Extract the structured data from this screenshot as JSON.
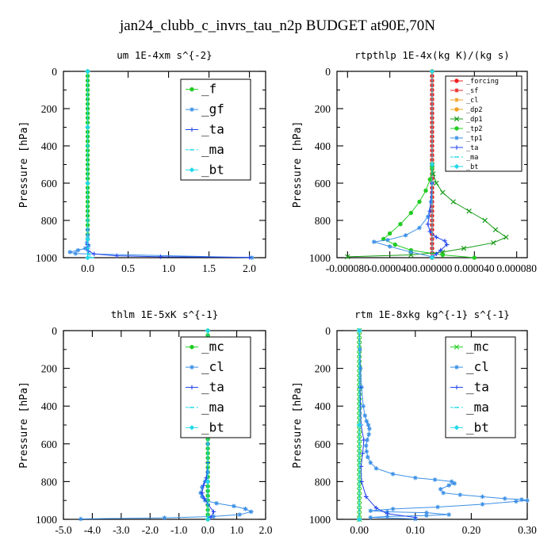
{
  "figure": {
    "title": "jan24_clubb_c_invrs_tau_n2p  BUDGET at90E,70N"
  },
  "colors": {
    "green": "#22cc22",
    "dkgreen": "#119911",
    "blue": "#2244ee",
    "lblue": "#3a8fe6",
    "cyan": "#22d8e8",
    "red": "#ee2222",
    "orange": "#f2a020",
    "axis": "#000000"
  },
  "chart_data": [
    {
      "id": "um",
      "type": "line",
      "title": "um  1E-4xm s^{-2}",
      "ylabel": "Pressure [hPa]",
      "xlim": [
        -0.3,
        2.2
      ],
      "ylim": [
        1000,
        0
      ],
      "xticks": [
        0.0,
        0.5,
        1.0,
        1.5,
        2.0
      ],
      "xtick_labels": [
        "0.0",
        "0.5",
        "1.0",
        "1.5",
        "2.0"
      ],
      "yticks": [
        0,
        200,
        400,
        600,
        800,
        1000
      ],
      "ytick_labels": [
        "0",
        "200",
        "400",
        "600",
        "800",
        "1000"
      ],
      "legend": {
        "position": "top-right",
        "size": "big"
      },
      "series": [
        {
          "name": "_f",
          "color": "green",
          "marker": "dot",
          "x": [
            0,
            0,
            0,
            0,
            0,
            0,
            0,
            0,
            0,
            0,
            0,
            0,
            0,
            0,
            0,
            0,
            0,
            0,
            0,
            0,
            0,
            0,
            0,
            0,
            0,
            0,
            0,
            0,
            0,
            0,
            0,
            0,
            0,
            0,
            0,
            0,
            0
          ],
          "y": [
            0,
            25,
            50,
            75,
            100,
            125,
            150,
            175,
            200,
            225,
            250,
            275,
            300,
            325,
            350,
            375,
            400,
            425,
            450,
            475,
            500,
            525,
            550,
            575,
            600,
            625,
            650,
            675,
            700,
            725,
            750,
            775,
            800,
            825,
            850,
            875,
            900
          ]
        },
        {
          "name": "_gf",
          "color": "lblue",
          "marker": "star",
          "x": [
            0,
            0,
            0,
            -0.01,
            0.01,
            -0.03,
            -0.12,
            -0.22,
            -0.15,
            2.03
          ],
          "y": [
            850,
            880,
            900,
            920,
            935,
            950,
            960,
            970,
            978,
            1000
          ]
        },
        {
          "name": "_ta",
          "color": "blue",
          "marker": "plus",
          "x": [
            0,
            0,
            -0.01,
            0.01,
            0.08,
            0.36,
            0.9,
            2.0
          ],
          "y": [
            900,
            930,
            950,
            965,
            980,
            990,
            995,
            998
          ]
        },
        {
          "name": "_ma",
          "color": "cyan",
          "marker": "dash",
          "x": [
            0,
            0,
            0,
            0,
            0.01,
            0.05
          ],
          "y": [
            0,
            400,
            800,
            950,
            980,
            1000
          ]
        },
        {
          "name": "_bt",
          "color": "cyan",
          "marker": "diamond",
          "x": [
            0,
            0,
            0,
            0,
            0
          ],
          "y": [
            0,
            300,
            600,
            900,
            1000
          ]
        }
      ]
    },
    {
      "id": "rtpthlp",
      "type": "line",
      "title": "rtpthlp  1E-4x(kg K)/(kg s)",
      "ylabel": "Pressure [hPa]",
      "xlim": [
        -9e-05,
        9e-05
      ],
      "ylim": [
        1000,
        0
      ],
      "xticks": [
        -8e-05,
        -4e-05,
        0,
        4e-05,
        8e-05
      ],
      "xtick_labels": [
        "-0.000080",
        "-0.000040",
        "0.000000",
        "0.000040",
        "0.000080"
      ],
      "yticks": [
        0,
        200,
        400,
        600,
        800,
        1000
      ],
      "ytick_labels": [
        "0",
        "200",
        "400",
        "600",
        "800",
        "1000"
      ],
      "legend": {
        "position": "top-right",
        "size": "small"
      },
      "series": [
        {
          "name": "_forcing",
          "color": "red",
          "marker": "dot",
          "x": [
            0,
            0,
            0,
            0,
            0,
            0,
            0,
            0,
            0,
            0,
            0,
            0,
            0,
            0,
            0,
            0,
            0,
            0,
            0,
            0,
            0,
            0,
            0,
            0,
            0,
            0,
            0,
            0,
            0,
            0,
            0,
            0,
            0,
            0,
            0,
            0,
            0,
            0,
            0,
            0,
            0
          ],
          "y": [
            0,
            25,
            50,
            75,
            100,
            125,
            150,
            175,
            200,
            225,
            250,
            275,
            300,
            325,
            350,
            375,
            400,
            425,
            450,
            475,
            500,
            525,
            550,
            575,
            600,
            625,
            650,
            675,
            700,
            725,
            750,
            775,
            800,
            825,
            850,
            875,
            900,
            925,
            950,
            975,
            1000
          ]
        },
        {
          "name": "_sf",
          "color": "red",
          "marker": "star",
          "x": [
            0,
            0,
            0
          ],
          "y": [
            0,
            500,
            1000
          ]
        },
        {
          "name": "_cl",
          "color": "orange",
          "marker": "star",
          "x": [
            0,
            0,
            0
          ],
          "y": [
            0,
            500,
            1000
          ]
        },
        {
          "name": "_dp2",
          "color": "orange",
          "marker": "dot",
          "x": [
            0,
            0,
            0
          ],
          "y": [
            0,
            500,
            1000
          ]
        },
        {
          "name": "_dp1",
          "color": "dkgreen",
          "marker": "cross",
          "x": [
            0,
            1e-06,
            4e-06,
            1e-05,
            2e-05,
            3.5e-05,
            5e-05,
            6e-05,
            7e-05,
            5.8e-05,
            3e-05,
            1e-05,
            -2e-05,
            -8e-05
          ],
          "y": [
            500,
            550,
            600,
            650,
            700,
            750,
            800,
            850,
            890,
            920,
            950,
            970,
            985,
            995
          ]
        },
        {
          "name": "_tp2",
          "color": "green",
          "marker": "dot",
          "x": [
            0,
            -2e-06,
            -6e-06,
            -1.2e-05,
            -2e-05,
            -3e-05,
            -4e-05,
            -4.6e-05,
            -3.5e-05,
            -2e-05,
            1e-05,
            4e-05
          ],
          "y": [
            520,
            580,
            640,
            700,
            760,
            820,
            870,
            900,
            930,
            960,
            985,
            1000
          ]
        },
        {
          "name": "_tp1",
          "color": "lblue",
          "marker": "star",
          "x": [
            0,
            -1e-06,
            -4e-06,
            -1.2e-05,
            -2.5e-05,
            -4.2e-05,
            -5.5e-05,
            -4e-05,
            -2e-05,
            0
          ],
          "y": [
            600,
            700,
            780,
            840,
            880,
            905,
            915,
            940,
            970,
            995
          ]
        },
        {
          "name": "_ta",
          "color": "blue",
          "marker": "plus",
          "x": [
            0,
            -2e-06,
            -4e-06,
            -2e-06,
            4e-06,
            1.2e-05,
            1.4e-05,
            8e-06,
            4e-06,
            0
          ],
          "y": [
            600,
            750,
            820,
            860,
            890,
            910,
            930,
            960,
            980,
            1000
          ]
        },
        {
          "name": "_ma",
          "color": "cyan",
          "marker": "dash",
          "x": [
            0,
            0,
            0
          ],
          "y": [
            0,
            500,
            1000
          ]
        },
        {
          "name": "_bt",
          "color": "cyan",
          "marker": "diamond",
          "x": [
            0,
            0,
            0
          ],
          "y": [
            0,
            500,
            1000
          ]
        }
      ]
    },
    {
      "id": "thlm",
      "type": "line",
      "title": "thlm  1E-5xK s^{-1}",
      "ylabel": "Pressure [hPa]",
      "xlim": [
        -5.0,
        2.0
      ],
      "ylim": [
        1000,
        0
      ],
      "xticks": [
        -5.0,
        -4.0,
        -3.0,
        -2.0,
        -1.0,
        0.0,
        1.0,
        2.0
      ],
      "xtick_labels": [
        "-5.0",
        "-4.0",
        "-3.0",
        "-2.0",
        "-1.0",
        "0.0",
        "1.0",
        "2.0"
      ],
      "yticks": [
        0,
        200,
        400,
        600,
        800,
        1000
      ],
      "ytick_labels": [
        "0",
        "200",
        "400",
        "600",
        "800",
        "1000"
      ],
      "legend": {
        "position": "top-right",
        "size": "big"
      },
      "series": [
        {
          "name": "_mc",
          "color": "green",
          "marker": "dot",
          "x": [
            0,
            0,
            0,
            0,
            0,
            0,
            0,
            0,
            0,
            0,
            0,
            0,
            0,
            0,
            0,
            0,
            0,
            0,
            0,
            0,
            0,
            0,
            0,
            0,
            0,
            0,
            0,
            0,
            0,
            0,
            0,
            0,
            0,
            0,
            0,
            0,
            0,
            0,
            0,
            0,
            0
          ],
          "y": [
            0,
            25,
            50,
            75,
            100,
            125,
            150,
            175,
            200,
            225,
            250,
            275,
            300,
            325,
            350,
            375,
            400,
            425,
            450,
            475,
            500,
            525,
            550,
            575,
            600,
            625,
            650,
            675,
            700,
            725,
            750,
            775,
            800,
            825,
            850,
            875,
            900,
            925,
            950,
            975,
            1000
          ]
        },
        {
          "name": "_cl",
          "color": "lblue",
          "marker": "star",
          "x": [
            0,
            0,
            -0.1,
            -0.2,
            -0.25,
            -0.2,
            -0.1,
            0.3,
            0.9,
            1.3,
            1.5,
            1.1,
            0.2,
            -1.5,
            -4.4
          ],
          "y": [
            600,
            750,
            800,
            830,
            860,
            880,
            900,
            915,
            930,
            945,
            960,
            975,
            985,
            992,
            998
          ]
        },
        {
          "name": "_ta",
          "color": "blue",
          "marker": "plus",
          "x": [
            0,
            -0.05,
            -0.15,
            -0.2,
            -0.12,
            0,
            0.2,
            0.1
          ],
          "y": [
            700,
            780,
            820,
            860,
            890,
            920,
            960,
            990
          ]
        },
        {
          "name": "_ma",
          "color": "cyan",
          "marker": "dash",
          "x": [
            0,
            0,
            0
          ],
          "y": [
            0,
            500,
            1000
          ]
        },
        {
          "name": "_bt",
          "color": "cyan",
          "marker": "diamond",
          "x": [
            0,
            0,
            0,
            0
          ],
          "y": [
            0,
            400,
            800,
            1000
          ]
        }
      ]
    },
    {
      "id": "rtm",
      "type": "line",
      "title": "rtm  1E-8xkg kg^{-1} s^{-1}",
      "ylabel": "Pressure [hPa]",
      "xlim": [
        -0.04,
        0.3
      ],
      "ylim": [
        1000,
        0
      ],
      "xticks": [
        0.0,
        0.1,
        0.2,
        0.3
      ],
      "xtick_labels": [
        "0.00",
        "0.10",
        "0.20",
        "0.30"
      ],
      "yticks": [
        0,
        200,
        400,
        600,
        800,
        1000
      ],
      "ytick_labels": [
        "0",
        "200",
        "400",
        "600",
        "800",
        "1000"
      ],
      "legend": {
        "position": "top-right",
        "size": "big"
      },
      "series": [
        {
          "name": "_mc",
          "color": "green",
          "marker": "cross",
          "x": [
            0,
            0,
            0,
            0,
            0,
            0,
            0,
            0,
            0,
            0,
            0,
            0,
            0,
            0,
            0,
            0,
            0,
            0,
            0,
            0,
            0,
            0,
            0,
            0,
            0,
            0,
            0,
            0,
            0,
            0,
            0,
            0,
            0,
            0,
            0,
            0,
            0,
            0,
            0,
            0,
            0
          ],
          "y": [
            0,
            25,
            50,
            75,
            100,
            125,
            150,
            175,
            200,
            225,
            250,
            275,
            300,
            325,
            350,
            375,
            400,
            425,
            450,
            475,
            500,
            525,
            550,
            575,
            600,
            625,
            650,
            675,
            700,
            725,
            750,
            775,
            800,
            825,
            850,
            875,
            900,
            925,
            950,
            975,
            1000
          ]
        },
        {
          "name": "_cl",
          "color": "lblue",
          "marker": "star",
          "x": [
            0,
            0.001,
            0.002,
            0.004,
            0.007,
            0.01,
            0.013,
            0.016,
            0.018,
            0.017,
            0.014,
            0.012,
            0.013,
            0.015,
            0.02,
            0.03,
            0.06,
            0.1,
            0.135,
            0.165,
            0.17,
            0.16,
            0.145,
            0.15,
            0.18,
            0.22,
            0.26,
            0.29,
            0.3,
            0.28,
            0.22,
            0.14,
            0.06,
            0.02,
            0.05,
            0.12,
            0.16,
            0.12,
            0.05,
            0.02,
            0.1
          ],
          "y": [
            0,
            100,
            200,
            300,
            400,
            450,
            480,
            500,
            520,
            550,
            580,
            610,
            640,
            670,
            700,
            730,
            760,
            780,
            790,
            800,
            810,
            820,
            840,
            860,
            870,
            880,
            890,
            895,
            900,
            905,
            920,
            935,
            945,
            955,
            960,
            965,
            975,
            980,
            985,
            990,
            998
          ]
        },
        {
          "name": "_ta",
          "color": "blue",
          "marker": "plus",
          "x": [
            0,
            0.001,
            0.003,
            0.008,
            0.006,
            0.003,
            0.004,
            0.012,
            0.03,
            0.05,
            0.1
          ],
          "y": [
            0,
            300,
            500,
            580,
            650,
            720,
            800,
            880,
            940,
            970,
            990
          ]
        },
        {
          "name": "_ma",
          "color": "cyan",
          "marker": "dash",
          "x": [
            0,
            0,
            0
          ],
          "y": [
            0,
            500,
            1000
          ]
        },
        {
          "name": "_bt",
          "color": "cyan",
          "marker": "diamond",
          "x": [
            0,
            0,
            0
          ],
          "y": [
            0,
            500,
            1000
          ]
        }
      ]
    }
  ]
}
